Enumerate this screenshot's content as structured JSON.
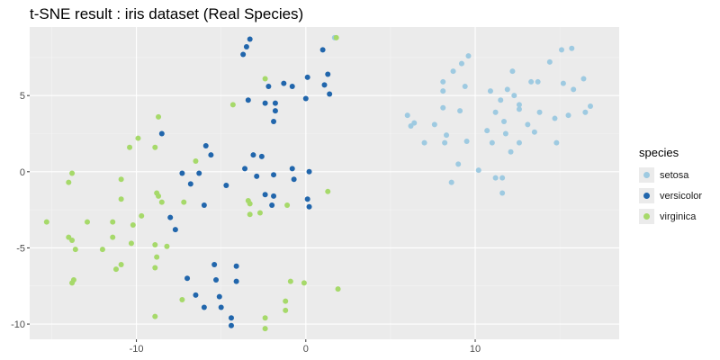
{
  "chart_data": {
    "type": "scatter",
    "title": "t-SNE result : iris dataset (Real Species)",
    "xlabel": "",
    "ylabel": "",
    "xlim": [
      -16.3,
      18.5
    ],
    "ylim": [
      -11.0,
      9.5
    ],
    "x_ticks": [
      -10,
      0,
      10
    ],
    "y_ticks": [
      -10,
      -5,
      0,
      5
    ],
    "grid": true,
    "legend": {
      "title": "species",
      "position": "right"
    },
    "series": [
      {
        "name": "setosa",
        "color": "#9ecae1",
        "points": [
          [
            1.7,
            8.8
          ],
          [
            15.7,
            8.1
          ],
          [
            15.1,
            8.0
          ],
          [
            9.6,
            7.6
          ],
          [
            14.4,
            7.2
          ],
          [
            9.2,
            7.1
          ],
          [
            8.7,
            6.6
          ],
          [
            12.2,
            6.6
          ],
          [
            16.4,
            6.1
          ],
          [
            8.1,
            5.9
          ],
          [
            13.3,
            5.9
          ],
          [
            13.7,
            5.9
          ],
          [
            15.2,
            5.8
          ],
          [
            9.4,
            5.6
          ],
          [
            8.1,
            5.3
          ],
          [
            10.9,
            5.3
          ],
          [
            15.8,
            5.4
          ],
          [
            12.3,
            5.0
          ],
          [
            11.9,
            5.4
          ],
          [
            11.5,
            4.7
          ],
          [
            12.6,
            4.4
          ],
          [
            16.8,
            4.3
          ],
          [
            8.1,
            4.2
          ],
          [
            11.2,
            3.9
          ],
          [
            12.6,
            4.1
          ],
          [
            9.1,
            4.0
          ],
          [
            16.5,
            3.9
          ],
          [
            13.8,
            3.9
          ],
          [
            15.5,
            3.7
          ],
          [
            6.0,
            3.7
          ],
          [
            14.7,
            3.5
          ],
          [
            6.4,
            3.2
          ],
          [
            11.7,
            3.3
          ],
          [
            6.2,
            3.0
          ],
          [
            7.6,
            3.1
          ],
          [
            10.7,
            2.7
          ],
          [
            13.1,
            3.1
          ],
          [
            11.8,
            2.5
          ],
          [
            13.5,
            2.6
          ],
          [
            8.3,
            2.4
          ],
          [
            7.0,
            1.9
          ],
          [
            8.2,
            1.9
          ],
          [
            9.5,
            2.0
          ],
          [
            11.0,
            1.9
          ],
          [
            12.6,
            1.9
          ],
          [
            14.8,
            1.9
          ],
          [
            12.1,
            1.3
          ],
          [
            9.0,
            0.5
          ],
          [
            10.2,
            0.1
          ],
          [
            11.2,
            -0.4
          ],
          [
            11.6,
            -0.4
          ],
          [
            8.6,
            -0.7
          ],
          [
            11.6,
            -1.4
          ]
        ]
      },
      {
        "name": "versicolor",
        "color": "#2166ac",
        "points": [
          [
            -3.3,
            8.7
          ],
          [
            -3.5,
            8.2
          ],
          [
            -3.7,
            7.7
          ],
          [
            1.0,
            8.0
          ],
          [
            1.3,
            6.4
          ],
          [
            1.1,
            5.7
          ],
          [
            0.1,
            6.2
          ],
          [
            -1.3,
            5.8
          ],
          [
            -0.8,
            5.6
          ],
          [
            -2.2,
            5.6
          ],
          [
            1.4,
            5.1
          ],
          [
            0.0,
            4.8
          ],
          [
            -1.8,
            4.5
          ],
          [
            -2.4,
            4.5
          ],
          [
            -3.4,
            4.7
          ],
          [
            -1.8,
            4.0
          ],
          [
            -1.9,
            3.3
          ],
          [
            -8.5,
            2.5
          ],
          [
            -5.9,
            1.7
          ],
          [
            -5.6,
            1.1
          ],
          [
            -3.1,
            1.1
          ],
          [
            -2.6,
            1.0
          ],
          [
            -3.6,
            0.2
          ],
          [
            -0.8,
            0.2
          ],
          [
            -1.9,
            -0.2
          ],
          [
            0.2,
            0.0
          ],
          [
            -7.3,
            -0.1
          ],
          [
            -6.3,
            -0.1
          ],
          [
            -2.9,
            -0.3
          ],
          [
            -0.7,
            -0.5
          ],
          [
            -6.8,
            -0.8
          ],
          [
            -4.7,
            -0.9
          ],
          [
            -2.4,
            -1.5
          ],
          [
            -1.9,
            -1.6
          ],
          [
            0.1,
            -1.8
          ],
          [
            -6.0,
            -2.2
          ],
          [
            -2.0,
            -2.2
          ],
          [
            0.2,
            -2.3
          ],
          [
            -8.0,
            -3.0
          ],
          [
            -7.7,
            -3.8
          ],
          [
            -4.1,
            -6.2
          ],
          [
            -5.4,
            -6.1
          ],
          [
            -7.0,
            -7.0
          ],
          [
            -5.3,
            -7.1
          ],
          [
            -4.1,
            -7.2
          ],
          [
            -6.5,
            -8.1
          ],
          [
            -5.1,
            -8.2
          ],
          [
            -6.0,
            -8.9
          ],
          [
            -5.0,
            -8.9
          ],
          [
            -4.4,
            -9.6
          ],
          [
            -4.4,
            -10.1
          ]
        ]
      },
      {
        "name": "virginica",
        "color": "#a6d96a",
        "points": [
          [
            1.8,
            8.8
          ],
          [
            -2.4,
            6.1
          ],
          [
            -4.3,
            4.4
          ],
          [
            -8.7,
            3.6
          ],
          [
            -9.9,
            2.2
          ],
          [
            -10.4,
            1.6
          ],
          [
            -8.9,
            1.6
          ],
          [
            -6.5,
            0.7
          ],
          [
            -13.8,
            -0.1
          ],
          [
            -14.0,
            -0.7
          ],
          [
            -10.9,
            -0.5
          ],
          [
            -8.8,
            -1.4
          ],
          [
            -8.7,
            -1.6
          ],
          [
            -7.2,
            -2.0
          ],
          [
            -10.9,
            -1.8
          ],
          [
            1.3,
            -1.3
          ],
          [
            -3.4,
            -1.9
          ],
          [
            -3.3,
            -2.1
          ],
          [
            -1.1,
            -2.2
          ],
          [
            -2.7,
            -2.7
          ],
          [
            -3.3,
            -2.8
          ],
          [
            -9.7,
            -2.9
          ],
          [
            -8.5,
            -2.0
          ],
          [
            -15.3,
            -3.3
          ],
          [
            -12.9,
            -3.3
          ],
          [
            -11.4,
            -3.3
          ],
          [
            -10.2,
            -3.5
          ],
          [
            -11.4,
            -4.3
          ],
          [
            -10.3,
            -4.7
          ],
          [
            -14.0,
            -4.3
          ],
          [
            -13.8,
            -4.5
          ],
          [
            -8.9,
            -4.8
          ],
          [
            -8.2,
            -4.9
          ],
          [
            -12.0,
            -5.1
          ],
          [
            -13.6,
            -5.1
          ],
          [
            -8.8,
            -5.6
          ],
          [
            -10.9,
            -6.1
          ],
          [
            -11.2,
            -6.4
          ],
          [
            -8.9,
            -6.3
          ],
          [
            -13.7,
            -7.1
          ],
          [
            -13.8,
            -7.3
          ],
          [
            -0.9,
            -7.2
          ],
          [
            -0.1,
            -7.3
          ],
          [
            1.9,
            -7.7
          ],
          [
            -7.3,
            -8.4
          ],
          [
            -1.2,
            -8.5
          ],
          [
            -1.2,
            -9.1
          ],
          [
            -8.9,
            -9.5
          ],
          [
            -2.4,
            -9.6
          ],
          [
            -2.4,
            -10.3
          ]
        ]
      }
    ]
  }
}
